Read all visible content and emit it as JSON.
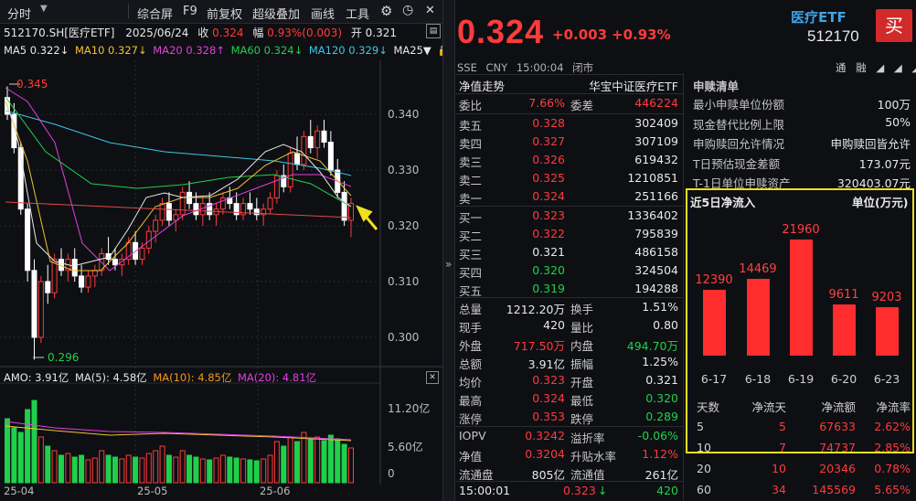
{
  "toolbar": {
    "period": "分时",
    "items": [
      "综合屏",
      "F9",
      "前复权",
      "超级叠加",
      "画线",
      "工具"
    ]
  },
  "info": {
    "code": "512170.SH[医疗ETF]",
    "date": "2025/06/24",
    "close_label": "收",
    "close": "0.324",
    "amp_label": "幅",
    "amp": "0.93%(0.003)",
    "open_label": "开",
    "open": "0.321"
  },
  "ma_line": {
    "ma5": "MA5 0.322↓",
    "ma10": "MA10 0.327↓",
    "ma20": "MA20 0.328↑",
    "ma60": "MA60 0.324↓",
    "ma120": "MA120 0.329↓",
    "ma250": "MA25▼"
  },
  "amo_line": {
    "amo": "AMO: 3.91亿",
    "ma5": "MA(5): 4.58亿",
    "ma10": "MA(10): 4.85亿",
    "ma20": "MA(20): 4.81亿"
  },
  "price_axis": [
    "0.340",
    "0.330",
    "0.320",
    "0.310",
    "0.300"
  ],
  "vol_axis": [
    "11.20亿",
    "5.60亿",
    "0"
  ],
  "dates": [
    "25-04",
    "25-05",
    "25-06"
  ],
  "annotations": {
    "high": "0.345",
    "low": "0.296"
  },
  "colors": {
    "up": "#ff3b3b",
    "down": "#1fd14a",
    "ma5": "#e8e8e8",
    "ma10": "#f1c232",
    "ma20": "#e040e0",
    "ma60": "#1fd14a",
    "ma120": "#3cc7e8",
    "highlight": "#f0e020"
  },
  "quote": {
    "price": "0.324",
    "change": "+0.003",
    "change_pct": "+0.93%",
    "name": "医疗ETF",
    "code": "512170",
    "buy_label": "买"
  },
  "subheader": [
    "SSE",
    "CNY",
    "15:00:04",
    "闭市"
  ],
  "right_tools": [
    "通",
    "融",
    "◢",
    "◢",
    "◢",
    "≡"
  ],
  "book": {
    "title_left": "净值走势",
    "title_right": "华宝中证医疗ETF",
    "weibi": {
      "label": "委比",
      "value": "7.66%",
      "label2": "委差",
      "value2": "446224"
    },
    "asks": [
      {
        "label": "卖五",
        "price": "0.328",
        "vol": "302409"
      },
      {
        "label": "卖四",
        "price": "0.327",
        "vol": "307109"
      },
      {
        "label": "卖三",
        "price": "0.326",
        "vol": "619432"
      },
      {
        "label": "卖二",
        "price": "0.325",
        "vol": "1210851"
      },
      {
        "label": "卖一",
        "price": "0.324",
        "vol": "251166"
      }
    ],
    "bids": [
      {
        "label": "买一",
        "price": "0.323",
        "vol": "1336402"
      },
      {
        "label": "买二",
        "price": "0.322",
        "vol": "795839"
      },
      {
        "label": "买三",
        "price": "0.321",
        "vol": "486158"
      },
      {
        "label": "买四",
        "price": "0.320",
        "vol": "324504"
      },
      {
        "label": "买五",
        "price": "0.319",
        "vol": "194288"
      }
    ],
    "stats": [
      {
        "k1": "总量",
        "v1": "1212.20万",
        "k2": "换手",
        "v2": "1.51%"
      },
      {
        "k1": "现手",
        "v1": "420",
        "k2": "量比",
        "v2": "0.80"
      },
      {
        "k1": "外盘",
        "v1": "717.50万",
        "k2": "内盘",
        "v2": "494.70万"
      },
      {
        "k1": "总额",
        "v1": "3.91亿",
        "k2": "振幅",
        "v2": "1.25%"
      },
      {
        "k1": "均价",
        "v1": "0.323",
        "k2": "开盘",
        "v2": "0.321"
      },
      {
        "k1": "最高",
        "v1": "0.324",
        "k2": "最低",
        "v2": "0.320"
      },
      {
        "k1": "涨停",
        "v1": "0.353",
        "k2": "跌停",
        "v2": "0.289"
      }
    ],
    "iopv": [
      {
        "k1": "IOPV",
        "v1": "0.3242",
        "k2": "溢折率",
        "v2": "-0.06%"
      },
      {
        "k1": "净值",
        "v1": "0.3204",
        "k2": "升贴水率",
        "v2": "1.12%"
      },
      {
        "k1": "流通盘",
        "v1": "805亿",
        "k2": "流通值",
        "v2": "261亿"
      }
    ],
    "last": {
      "time": "15:00:01",
      "price": "0.323",
      "arrow": "↓",
      "vol": "420"
    }
  },
  "sub": {
    "title": "申赎清单",
    "rows": [
      {
        "k": "最小申赎单位份额",
        "v": "100万"
      },
      {
        "k": "现金替代比例上限",
        "v": "50%"
      },
      {
        "k": "申购赎回允许情况",
        "v": "申购赎回皆允许"
      },
      {
        "k": "T日预估现金差额",
        "v": "173.07元"
      },
      {
        "k": "T-1日单位申赎资产",
        "v": "320403.07元"
      }
    ],
    "flow_title": "近5日净流入",
    "flow_unit": "单位(万元)",
    "table_header": [
      "天数",
      "净流天",
      "净流额",
      "净流率"
    ],
    "table": [
      [
        "5",
        "5",
        "67633",
        "2.62%"
      ],
      [
        "10",
        "7",
        "74737",
        "2.85%"
      ],
      [
        "20",
        "10",
        "20346",
        "0.78%"
      ],
      [
        "60",
        "34",
        "145569",
        "5.65%"
      ]
    ]
  },
  "chart_data": {
    "type": "bar",
    "title": "近5日净流入",
    "ylabel": "单位(万元)",
    "categories": [
      "6-17",
      "6-18",
      "6-19",
      "6-20",
      "6-23"
    ],
    "values": [
      12390,
      14469,
      21960,
      9611,
      9203
    ],
    "ylim": [
      0,
      24000
    ]
  }
}
